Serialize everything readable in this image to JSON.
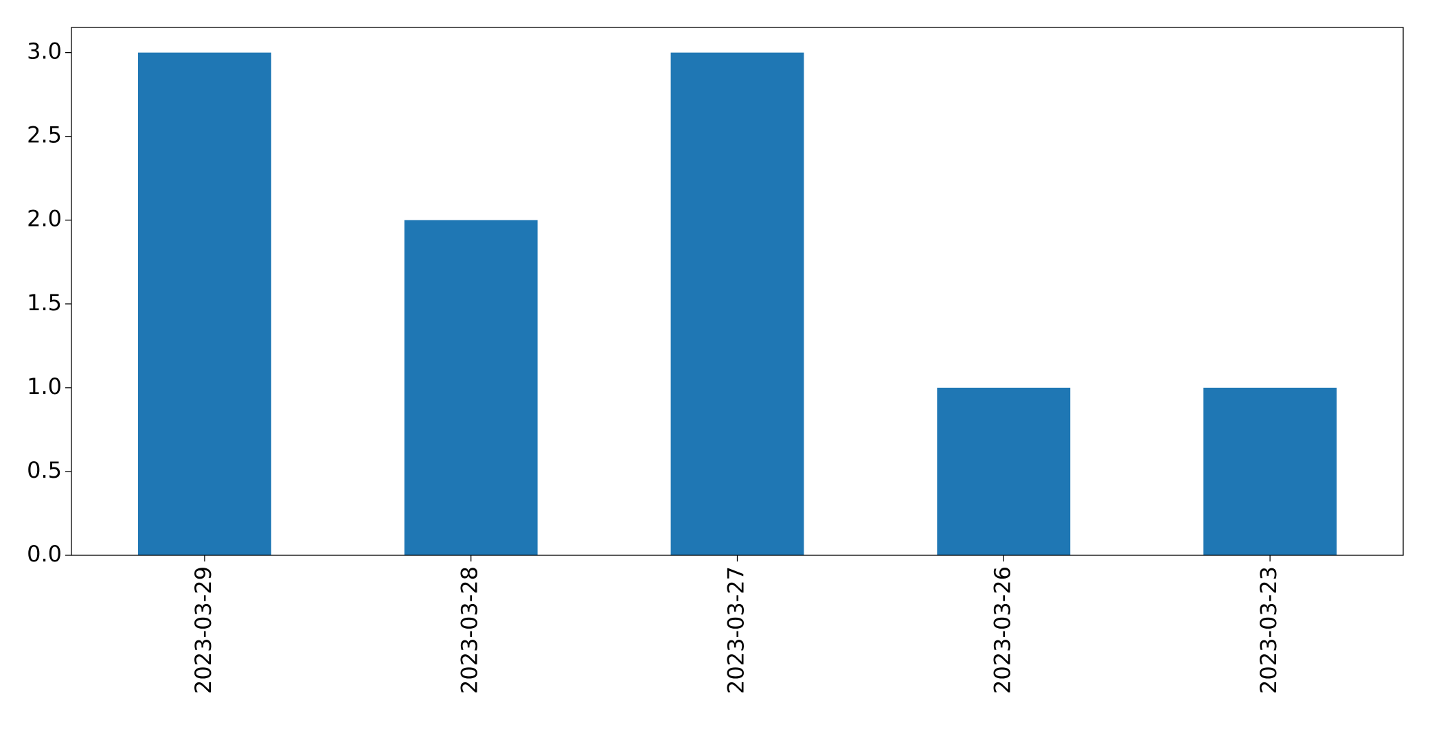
{
  "chart_data": {
    "type": "bar",
    "categories": [
      "2023-03-29",
      "2023-03-28",
      "2023-03-27",
      "2023-03-26",
      "2023-03-23"
    ],
    "values": [
      3,
      2,
      3,
      1,
      1
    ],
    "color": "#1f77b4",
    "ylim": [
      0,
      3.15
    ],
    "yticks": [
      {
        "value": 0,
        "label": "0.0"
      },
      {
        "value": 0.5,
        "label": "0.5"
      },
      {
        "value": 1,
        "label": "1.0"
      },
      {
        "value": 1.5,
        "label": "1.5"
      },
      {
        "value": 2,
        "label": "2.0"
      },
      {
        "value": 2.5,
        "label": "2.5"
      },
      {
        "value": 3,
        "label": "3.0"
      }
    ],
    "grid": false
  }
}
